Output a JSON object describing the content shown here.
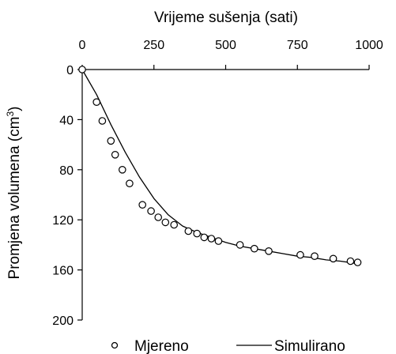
{
  "chart_data": {
    "type": "scatter",
    "xlabel": "Vrijeme sušenja (sati)",
    "ylabel_main": "Promjena volumena (cm",
    "ylabel_sup": "3",
    "ylabel_close": ")",
    "x_axis_position": "top",
    "y_axis_inverted": true,
    "xlim": [
      0,
      1000
    ],
    "ylim": [
      0,
      200
    ],
    "x_ticks": [
      0,
      250,
      500,
      750,
      1000
    ],
    "y_ticks": [
      0,
      40,
      80,
      120,
      160,
      200
    ],
    "legend": {
      "placement": "bottom"
    },
    "grid": false,
    "series": [
      {
        "name": "Mjereno",
        "kind": "markers",
        "marker": "open-circle",
        "points": [
          [
            0,
            0
          ],
          [
            50,
            26
          ],
          [
            70,
            41
          ],
          [
            100,
            57
          ],
          [
            115,
            68
          ],
          [
            140,
            80
          ],
          [
            165,
            91
          ],
          [
            210,
            108
          ],
          [
            240,
            113
          ],
          [
            265,
            118
          ],
          [
            290,
            122
          ],
          [
            320,
            124
          ],
          [
            370,
            129
          ],
          [
            400,
            131
          ],
          [
            425,
            134
          ],
          [
            450,
            135
          ],
          [
            475,
            137
          ],
          [
            550,
            140
          ],
          [
            600,
            143
          ],
          [
            650,
            145
          ],
          [
            760,
            148
          ],
          [
            810,
            149
          ],
          [
            875,
            151
          ],
          [
            935,
            153
          ],
          [
            960,
            154
          ]
        ]
      },
      {
        "name": "Simulirano",
        "kind": "line",
        "points": [
          [
            0,
            0
          ],
          [
            50,
            20
          ],
          [
            100,
            44
          ],
          [
            150,
            66
          ],
          [
            200,
            86
          ],
          [
            250,
            103
          ],
          [
            300,
            116
          ],
          [
            350,
            125
          ],
          [
            400,
            130
          ],
          [
            450,
            134
          ],
          [
            500,
            138
          ],
          [
            550,
            141
          ],
          [
            600,
            143
          ],
          [
            650,
            145
          ],
          [
            700,
            147
          ],
          [
            750,
            149
          ],
          [
            800,
            150
          ],
          [
            850,
            152
          ],
          [
            900,
            153
          ],
          [
            960,
            155
          ]
        ]
      }
    ]
  }
}
